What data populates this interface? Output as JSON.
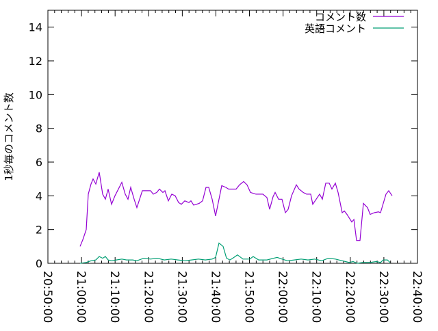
{
  "chart_data": {
    "type": "line",
    "title": "",
    "xlabel": "",
    "ylabel": "1秒毎のコメント数",
    "xlim": [
      "20:50:00",
      "22:40:00"
    ],
    "ylim": [
      0,
      15
    ],
    "x_ticks": [
      "20:50:00",
      "21:00:00",
      "21:10:00",
      "21:20:00",
      "21:30:00",
      "21:40:00",
      "21:50:00",
      "22:00:00",
      "22:10:00",
      "22:20:00",
      "22:30:00",
      "22:40:00"
    ],
    "y_ticks": [
      "0",
      "2",
      "4",
      "6",
      "8",
      "10",
      "12",
      "14"
    ],
    "grid": false,
    "legend_position": "top-right",
    "series": [
      {
        "name": "コメント数",
        "color": "#9400d3",
        "points": [
          [
            "20:59:34",
            1.0
          ],
          [
            "21:00:23",
            1.4
          ],
          [
            "21:01:25",
            2.0
          ],
          [
            "21:02:01",
            4.1
          ],
          [
            "21:02:50",
            4.7
          ],
          [
            "21:03:27",
            5.0
          ],
          [
            "21:04:16",
            4.7
          ],
          [
            "21:05:17",
            5.4
          ],
          [
            "21:06:18",
            4.1
          ],
          [
            "21:07:07",
            3.8
          ],
          [
            "21:07:56",
            4.4
          ],
          [
            "21:08:57",
            3.5
          ],
          [
            "21:09:58",
            4.0
          ],
          [
            "21:12:00",
            4.8
          ],
          [
            "21:13:01",
            4.1
          ],
          [
            "21:13:50",
            3.8
          ],
          [
            "21:14:39",
            4.5
          ],
          [
            "21:15:40",
            3.8
          ],
          [
            "21:16:29",
            3.3
          ],
          [
            "21:18:07",
            4.3
          ],
          [
            "21:19:20",
            4.3
          ],
          [
            "21:20:33",
            4.3
          ],
          [
            "21:21:22",
            4.1
          ],
          [
            "21:22:23",
            4.2
          ],
          [
            "21:23:12",
            4.4
          ],
          [
            "21:24:13",
            4.2
          ],
          [
            "21:24:50",
            4.3
          ],
          [
            "21:25:51",
            3.7
          ],
          [
            "21:26:52",
            4.1
          ],
          [
            "21:27:53",
            4.0
          ],
          [
            "21:28:55",
            3.6
          ],
          [
            "21:29:43",
            3.5
          ],
          [
            "21:30:44",
            3.7
          ],
          [
            "21:31:58",
            3.6
          ],
          [
            "21:32:34",
            3.7
          ],
          [
            "21:33:23",
            3.45
          ],
          [
            "21:35:01",
            3.55
          ],
          [
            "21:36:02",
            3.7
          ],
          [
            "21:37:03",
            4.5
          ],
          [
            "21:37:52",
            4.5
          ],
          [
            "21:38:53",
            3.8
          ],
          [
            "21:39:54",
            2.8
          ],
          [
            "21:40:56",
            3.8
          ],
          [
            "21:41:44",
            4.6
          ],
          [
            "21:42:58",
            4.5
          ],
          [
            "21:43:47",
            4.4
          ],
          [
            "21:44:48",
            4.4
          ],
          [
            "21:46:01",
            4.4
          ],
          [
            "21:47:02",
            4.65
          ],
          [
            "21:48:16",
            4.85
          ],
          [
            "21:49:17",
            4.65
          ],
          [
            "21:50:18",
            4.2
          ],
          [
            "21:51:56",
            4.1
          ],
          [
            "21:53:58",
            4.1
          ],
          [
            "21:55:11",
            3.9
          ],
          [
            "21:56:00",
            3.2
          ],
          [
            "21:57:01",
            3.95
          ],
          [
            "21:57:38",
            4.2
          ],
          [
            "21:58:39",
            3.8
          ],
          [
            "21:59:40",
            3.8
          ],
          [
            "22:00:41",
            3.0
          ],
          [
            "22:01:30",
            3.2
          ],
          [
            "22:02:31",
            4.0
          ],
          [
            "22:03:57",
            4.65
          ],
          [
            "22:04:46",
            4.4
          ],
          [
            "22:05:59",
            4.2
          ],
          [
            "22:07:00",
            4.1
          ],
          [
            "22:08:13",
            4.1
          ],
          [
            "22:08:50",
            3.5
          ],
          [
            "22:09:51",
            3.8
          ],
          [
            "22:10:52",
            4.1
          ],
          [
            "22:11:41",
            3.8
          ],
          [
            "22:12:42",
            4.75
          ],
          [
            "22:13:43",
            4.75
          ],
          [
            "22:14:32",
            4.4
          ],
          [
            "22:15:33",
            4.75
          ],
          [
            "22:16:22",
            4.2
          ],
          [
            "22:17:36",
            3.0
          ],
          [
            "22:18:13",
            3.1
          ],
          [
            "22:19:01",
            2.9
          ],
          [
            "22:20:27",
            2.45
          ],
          [
            "22:21:04",
            2.6
          ],
          [
            "22:21:52",
            1.35
          ],
          [
            "22:22:53",
            1.35
          ],
          [
            "22:23:55",
            3.55
          ],
          [
            "22:25:08",
            3.3
          ],
          [
            "22:25:56",
            2.9
          ],
          [
            "22:27:10",
            3.0
          ],
          [
            "22:28:23",
            3.05
          ],
          [
            "22:29:00",
            3.0
          ],
          [
            "22:30:38",
            4.1
          ],
          [
            "22:31:27",
            4.3
          ],
          [
            "22:32:28",
            4.0
          ]
        ]
      },
      {
        "name": "英語コメント",
        "color": "#009e73",
        "points": [
          [
            "20:59:34",
            0
          ],
          [
            "21:01:25",
            0.05
          ],
          [
            "21:02:50",
            0.15
          ],
          [
            "21:04:16",
            0.2
          ],
          [
            "21:05:17",
            0.4
          ],
          [
            "21:06:18",
            0.3
          ],
          [
            "21:07:07",
            0.4
          ],
          [
            "21:07:56",
            0.2
          ],
          [
            "21:08:57",
            0.15
          ],
          [
            "21:10:22",
            0.2
          ],
          [
            "21:12:00",
            0.25
          ],
          [
            "21:13:26",
            0.2
          ],
          [
            "21:15:16",
            0.2
          ],
          [
            "21:16:29",
            0.15
          ],
          [
            "21:18:31",
            0.3
          ],
          [
            "21:20:33",
            0.25
          ],
          [
            "21:22:36",
            0.3
          ],
          [
            "21:24:38",
            0.2
          ],
          [
            "21:26:40",
            0.25
          ],
          [
            "21:28:42",
            0.2
          ],
          [
            "21:30:44",
            0.15
          ],
          [
            "21:32:46",
            0.2
          ],
          [
            "21:34:49",
            0.25
          ],
          [
            "21:36:51",
            0.2
          ],
          [
            "21:38:53",
            0.25
          ],
          [
            "21:39:54",
            0.35
          ],
          [
            "21:40:56",
            1.2
          ],
          [
            "21:42:09",
            1.0
          ],
          [
            "21:43:10",
            0.3
          ],
          [
            "21:44:11",
            0.2
          ],
          [
            "21:45:00",
            0.3
          ],
          [
            "21:46:26",
            0.5
          ],
          [
            "21:48:03",
            0.25
          ],
          [
            "21:50:05",
            0.25
          ],
          [
            "21:51:06",
            0.4
          ],
          [
            "21:52:44",
            0.2
          ],
          [
            "21:55:11",
            0.2
          ],
          [
            "21:57:13",
            0.3
          ],
          [
            "21:58:14",
            0.35
          ],
          [
            "21:59:40",
            0.25
          ],
          [
            "22:01:18",
            0.15
          ],
          [
            "22:03:20",
            0.2
          ],
          [
            "22:05:22",
            0.25
          ],
          [
            "22:07:24",
            0.2
          ],
          [
            "22:09:27",
            0.25
          ],
          [
            "22:11:29",
            0.15
          ],
          [
            "22:13:31",
            0.3
          ],
          [
            "22:15:33",
            0.25
          ],
          [
            "22:17:36",
            0.15
          ],
          [
            "22:19:38",
            0.05
          ],
          [
            "22:20:51",
            0.1
          ],
          [
            "22:22:04",
            0
          ],
          [
            "22:23:42",
            0.05
          ],
          [
            "22:25:44",
            0.05
          ],
          [
            "22:27:47",
            0.1
          ],
          [
            "22:29:00",
            0.05
          ],
          [
            "22:29:49",
            0.2
          ],
          [
            "22:31:02",
            0.2
          ],
          [
            "22:31:51",
            0.05
          ]
        ]
      }
    ]
  }
}
